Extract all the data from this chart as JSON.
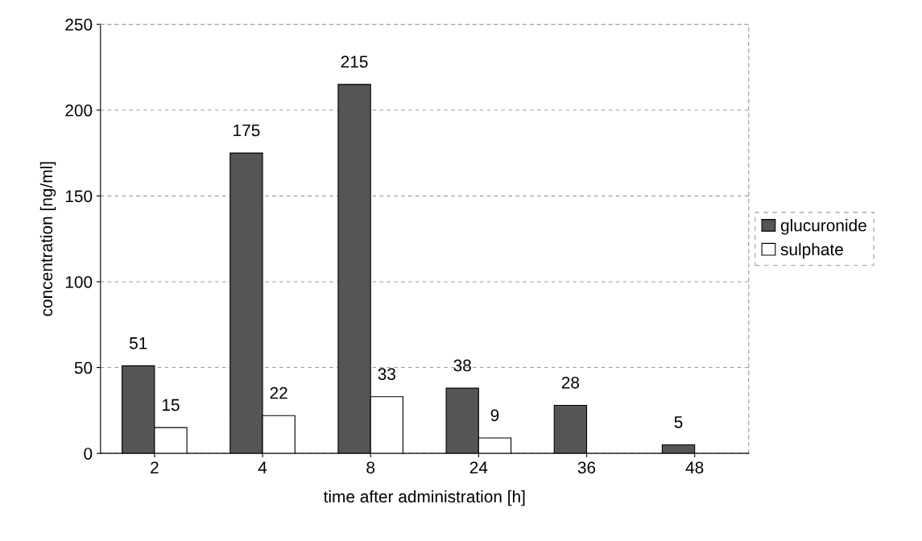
{
  "chart_data": {
    "type": "bar",
    "xlabel": "time after administration [h]",
    "ylabel": "concentration [ng/ml]",
    "categories": [
      "2",
      "4",
      "8",
      "24",
      "36",
      "48"
    ],
    "series": [
      {
        "name": "glucuronide",
        "color": "#555555",
        "values": [
          51,
          175,
          215,
          38,
          28,
          5
        ]
      },
      {
        "name": "sulphate",
        "color": "#ffffff",
        "values": [
          15,
          22,
          33,
          9,
          null,
          null
        ]
      }
    ],
    "ylim": [
      0,
      250
    ],
    "yticks": [
      0,
      50,
      100,
      150,
      200,
      250
    ],
    "grid": "y",
    "legend": "right",
    "data_labels": true
  }
}
